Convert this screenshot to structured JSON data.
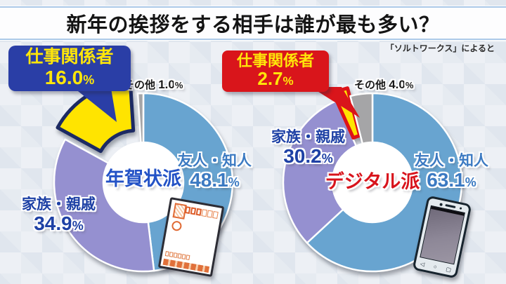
{
  "title_bar": {
    "title": "新年の挨拶をする相手は誰が最も多い？"
  },
  "source_note": "「ソルトワークス」によると",
  "chart_data": [
    {
      "type": "pie",
      "group_label": "年賀状派",
      "title": "年賀状派",
      "unit": "%",
      "categories": [
        "友人・知人",
        "家族・親戚",
        "仕事関係者",
        "その他"
      ],
      "values": [
        48.1,
        34.9,
        16.0,
        1.0
      ],
      "colors": [
        "#68a4d0",
        "#9590d0",
        "#ffe400",
        "#a5a5a7"
      ],
      "explode": [
        0,
        0,
        20,
        0
      ],
      "slice_borders": [
        null,
        null,
        "#1c2a63",
        null
      ],
      "start_angle": 0,
      "direction": "clockwise",
      "labels": {
        "friends": {
          "label": "友人・知人",
          "value": "48.1",
          "unit": "%"
        },
        "family": {
          "label": "家族・親戚",
          "value": "34.9",
          "unit": "%"
        },
        "other": {
          "label": "その他",
          "value": "1.0",
          "unit": "%"
        }
      },
      "callout": {
        "label": "仕事関係者",
        "value": "16.0",
        "unit": "%",
        "bg_color": "#2a3ea6",
        "text_color": "#ffe60a"
      }
    },
    {
      "type": "pie",
      "group_label": "デジタル派",
      "title": "デジタル派",
      "unit": "%",
      "categories": [
        "友人・知人",
        "家族・親戚",
        "仕事関係者",
        "その他"
      ],
      "values": [
        63.1,
        30.2,
        2.7,
        4.0
      ],
      "colors": [
        "#68a4d0",
        "#9590d0",
        "#ffe400",
        "#a5a5a7"
      ],
      "explode": [
        0,
        0,
        12,
        0
      ],
      "slice_borders": [
        null,
        null,
        "#dd1217",
        null
      ],
      "start_angle": 0,
      "direction": "clockwise",
      "labels": {
        "friends": {
          "label": "友人・知人",
          "value": "63.1",
          "unit": "%"
        },
        "family": {
          "label": "家族・親戚",
          "value": "30.2",
          "unit": "%"
        },
        "other": {
          "label": "その他",
          "value": "4.0",
          "unit": "%"
        }
      },
      "callout": {
        "label": "仕事関係者",
        "value": "2.7",
        "unit": "%",
        "bg_color": "#d9151b",
        "text_color": "#ffe60a"
      }
    }
  ],
  "illustrations": {
    "left_icon": "nengajo-postcard",
    "right_icon": "smartphone",
    "phone_nav_icons": [
      "◁",
      "○",
      "▢"
    ]
  }
}
